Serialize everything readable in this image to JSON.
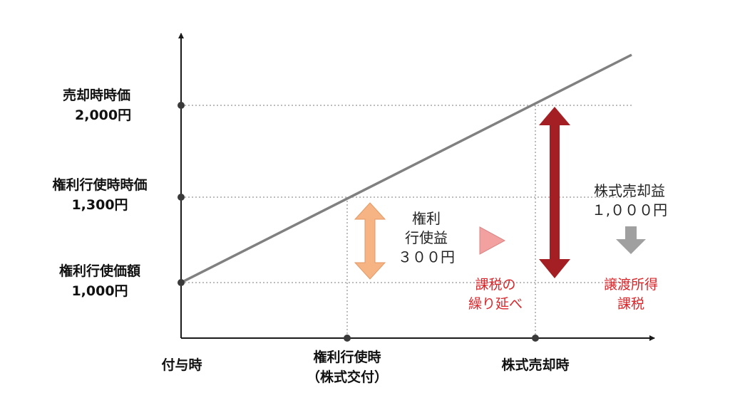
{
  "colors": {
    "axis": "#1a1a1a",
    "price_line": "#808080",
    "guide": "#a6a6a6",
    "exercise_arrow": "#f6b383",
    "sale_arrow": "#a31f24",
    "triangle": "#f2a0a0",
    "down_arrow": "#a0a0a0",
    "red_text": "#d9262b"
  },
  "y_labels": {
    "sale_price": {
      "title": "売却時時価",
      "value": "2,000円"
    },
    "exercise_price": {
      "title": "権利行使時時価",
      "value": "1,300円"
    },
    "strike": {
      "title": "権利行使価額",
      "value": "1,000円"
    }
  },
  "x_labels": {
    "grant": "付与時",
    "exercise_line1": "権利行使時",
    "exercise_line2": "（株式交付）",
    "sale": "株式売却時"
  },
  "exercise_gain": {
    "line1": "権利",
    "line2": "行使益",
    "line3": "３００円"
  },
  "deferral": {
    "line1": "課税の",
    "line2": "繰り延べ"
  },
  "sale_gain": {
    "line1": "株式売却益",
    "line2": "１,０００円"
  },
  "transfer_tax": {
    "line1": "譲渡所得",
    "line2": "課税"
  }
}
